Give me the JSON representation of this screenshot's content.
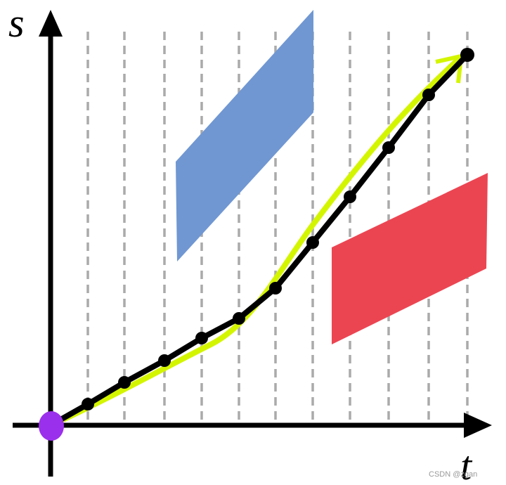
{
  "axes": {
    "y_label": "s",
    "x_label": "t"
  },
  "watermark": "CSDN @zgan"
}
